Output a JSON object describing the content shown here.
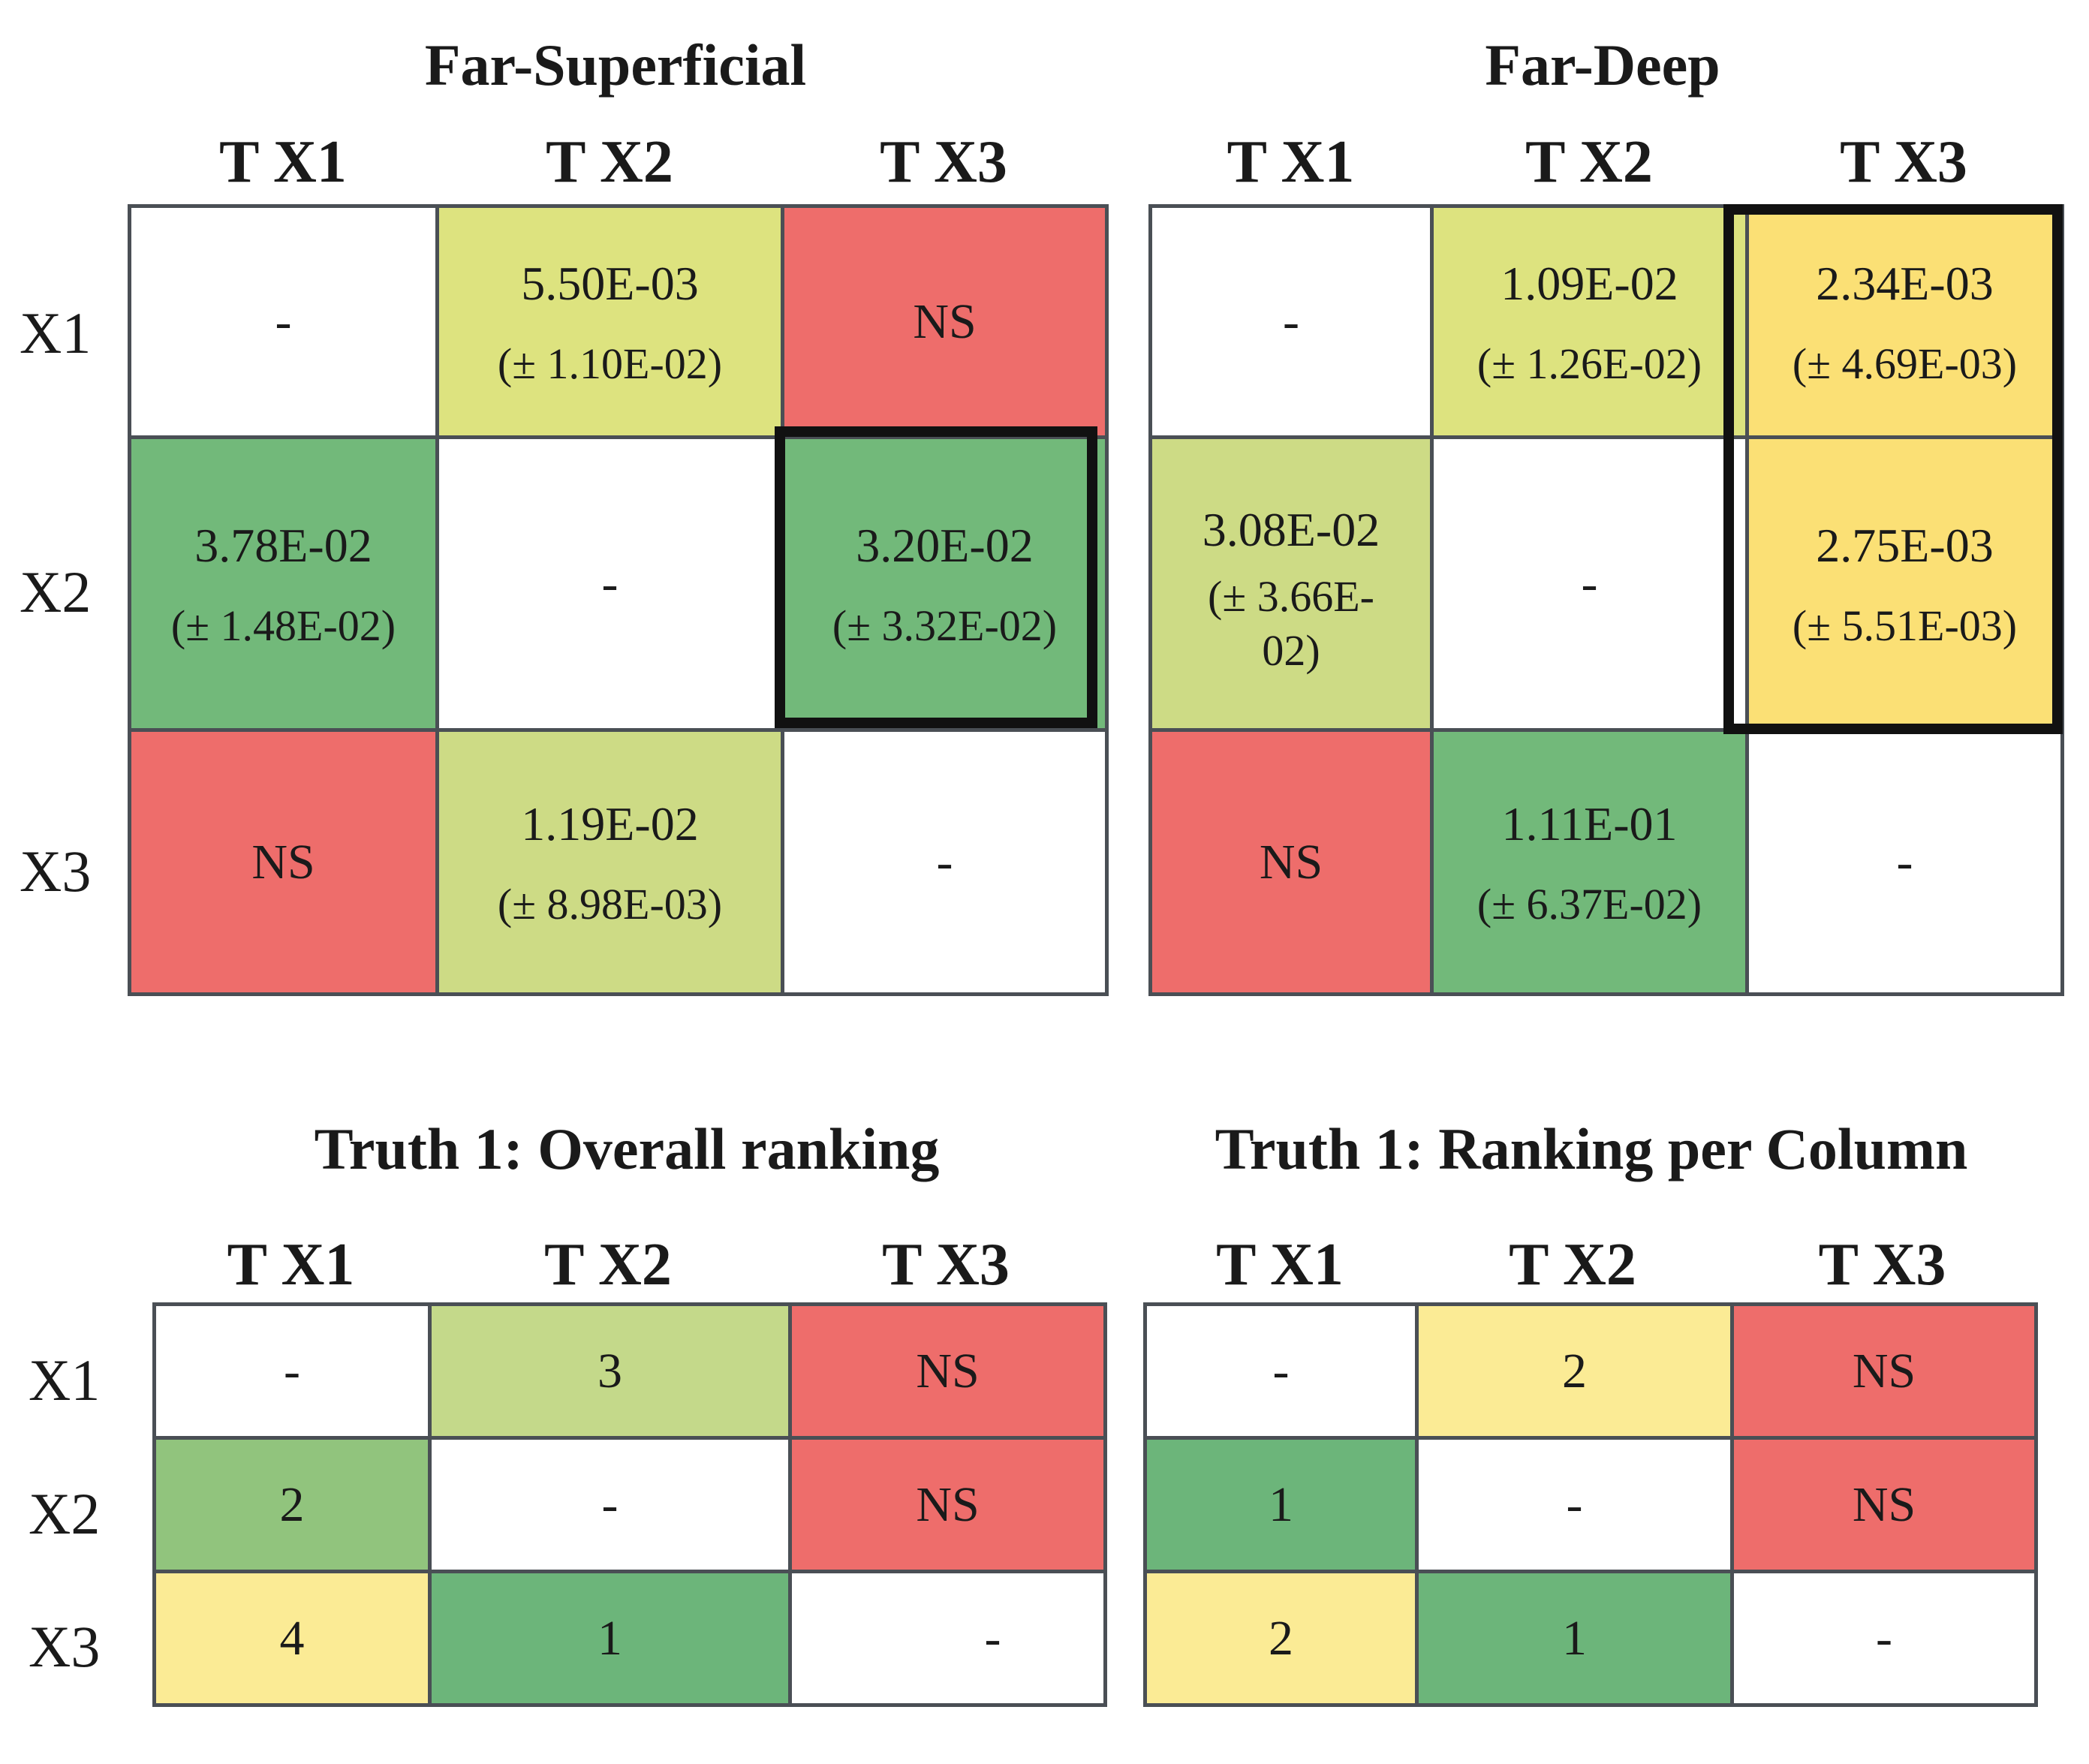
{
  "colors": {
    "white": "#ffffff",
    "red": "#ee6d6b",
    "lime": "#dde37f",
    "yellow": "#fbe075",
    "lightyellow": "#fbeb95",
    "yellowgreen": "#cddb85",
    "lightgreen": "#c4d98a",
    "midgreen": "#91c47d",
    "green": "#72b97a",
    "darkgreen": "#6cb57a"
  },
  "panels": [
    {
      "title": "Far-Superficial",
      "cols": [
        "T X1",
        "T X2",
        "T X3"
      ],
      "rows": [
        "X1",
        "X2",
        "X3"
      ],
      "cells": [
        [
          {
            "v": "-",
            "c": "white"
          },
          {
            "v": "5.50E-03",
            "e": "(± 1.10E-02)",
            "c": "lime"
          },
          {
            "v": "NS",
            "c": "red"
          }
        ],
        [
          {
            "v": "3.78E-02",
            "e": "(± 1.48E-02)",
            "c": "green"
          },
          {
            "v": "-",
            "c": "white"
          },
          {
            "v": "3.20E-02",
            "e": "(± 3.32E-02)",
            "c": "green"
          }
        ],
        [
          {
            "v": "NS",
            "c": "red"
          },
          {
            "v": "1.19E-02",
            "e": "(± 8.98E-03)",
            "c": "yellowgreen"
          },
          {
            "v": "-",
            "c": "white"
          }
        ]
      ]
    },
    {
      "title": "Far-Deep",
      "cols": [
        "T X1",
        "T X2",
        "T X3"
      ],
      "rows": [],
      "cells": [
        [
          {
            "v": "-",
            "c": "white"
          },
          {
            "v": "1.09E-02",
            "e": "(± 1.26E-02)",
            "c": "lime"
          },
          {
            "v": "2.34E-03",
            "e": "(±  4.69E-03)",
            "c": "yellow"
          }
        ],
        [
          {
            "v": "3.08E-02",
            "e": "(± 3.66E-",
            "e2": "02)",
            "c": "yellowgreen"
          },
          {
            "v": "-",
            "c": "white"
          },
          {
            "v": "2.75E-03",
            "e": "(±  5.51E-03)",
            "c": "yellow"
          }
        ],
        [
          {
            "v": "NS",
            "c": "red"
          },
          {
            "v": "1.11E-01",
            "e": "(± 6.37E-02)",
            "c": "green"
          },
          {
            "v": "-",
            "c": "white"
          }
        ]
      ]
    },
    {
      "title": "Truth 1: Overall ranking",
      "cols": [
        "T X1",
        "T X2",
        "T X3"
      ],
      "rows": [
        "X1",
        "X2",
        "X3"
      ],
      "cells": [
        [
          {
            "v": "-",
            "c": "white"
          },
          {
            "v": "3",
            "c": "lightgreen"
          },
          {
            "v": "NS",
            "c": "red"
          }
        ],
        [
          {
            "v": "2",
            "c": "midgreen"
          },
          {
            "v": "-",
            "c": "white"
          },
          {
            "v": "NS",
            "c": "red"
          }
        ],
        [
          {
            "v": "4",
            "c": "lightyellow"
          },
          {
            "v": "1",
            "c": "darkgreen"
          },
          {
            "v": "-",
            "c": "white"
          }
        ]
      ]
    },
    {
      "title": "Truth 1: Ranking per Column",
      "cols": [
        "T X1",
        "T X2",
        "T X3"
      ],
      "rows": [],
      "cells": [
        [
          {
            "v": "-",
            "c": "white"
          },
          {
            "v": "2",
            "c": "lightyellow"
          },
          {
            "v": "NS",
            "c": "red"
          }
        ],
        [
          {
            "v": "1",
            "c": "darkgreen"
          },
          {
            "v": "-",
            "c": "white"
          },
          {
            "v": "NS",
            "c": "red"
          }
        ],
        [
          {
            "v": "2",
            "c": "lightyellow"
          },
          {
            "v": "1",
            "c": "darkgreen"
          },
          {
            "v": "-",
            "c": "white"
          }
        ]
      ]
    }
  ]
}
